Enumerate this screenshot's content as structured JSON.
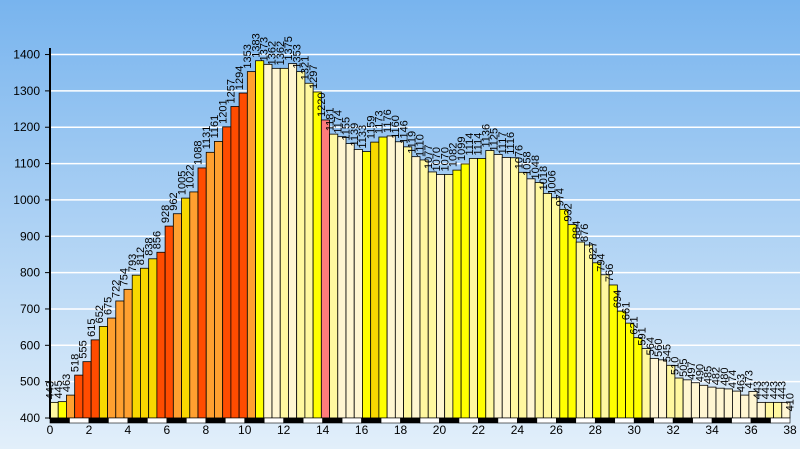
{
  "chart_data": {
    "type": "bar",
    "title": "",
    "xlabel": "",
    "ylabel": "",
    "xlim": [
      0,
      38
    ],
    "ylim": [
      400,
      1440
    ],
    "x_ticks": [
      0,
      2,
      4,
      6,
      8,
      10,
      12,
      14,
      16,
      18,
      20,
      22,
      24,
      26,
      28,
      30,
      32,
      34,
      36,
      38
    ],
    "y_ticks": [
      400,
      500,
      600,
      700,
      800,
      900,
      1000,
      1100,
      1200,
      1300,
      1400
    ],
    "grid": "horizontal",
    "legend": "none",
    "values": [
      443,
      445,
      463,
      518,
      555,
      615,
      652,
      675,
      722,
      754,
      793,
      812,
      838,
      856,
      928,
      962,
      1005,
      1022,
      1088,
      1131,
      1161,
      1201,
      1257,
      1294,
      1353,
      1383,
      1373,
      1362,
      1362,
      1375,
      1353,
      1321,
      1297,
      1220,
      1181,
      1174,
      1155,
      1139,
      1133,
      1159,
      1173,
      1176,
      1160,
      1146,
      1119,
      1110,
      1077,
      1070,
      1070,
      1082,
      1099,
      1114,
      1114,
      1136,
      1125,
      1117,
      1116,
      1076,
      1058,
      1048,
      1018,
      1006,
      974,
      932,
      884,
      876,
      827,
      794,
      766,
      694,
      661,
      621,
      591,
      564,
      560,
      545,
      510,
      505,
      497,
      490,
      485,
      482,
      480,
      474,
      463,
      473,
      443,
      443,
      443,
      443,
      410
    ],
    "colors": {
      "plot_bg_top": "#78B4EE",
      "plot_bg_bottom": "#E2EFFA",
      "gridline": "#FFFFFF",
      "bar_outline": "#000000",
      "bar_palette": [
        "#FFF6D2",
        "#FFF8A0",
        "#FFFF00",
        "#F8D800",
        "#FFA030",
        "#FF7B7B",
        "#FF4C00"
      ],
      "axis": "#000000",
      "x_axis_stripe_dark": "#000000",
      "x_axis_stripe_light": "#FFFFFF"
    }
  }
}
